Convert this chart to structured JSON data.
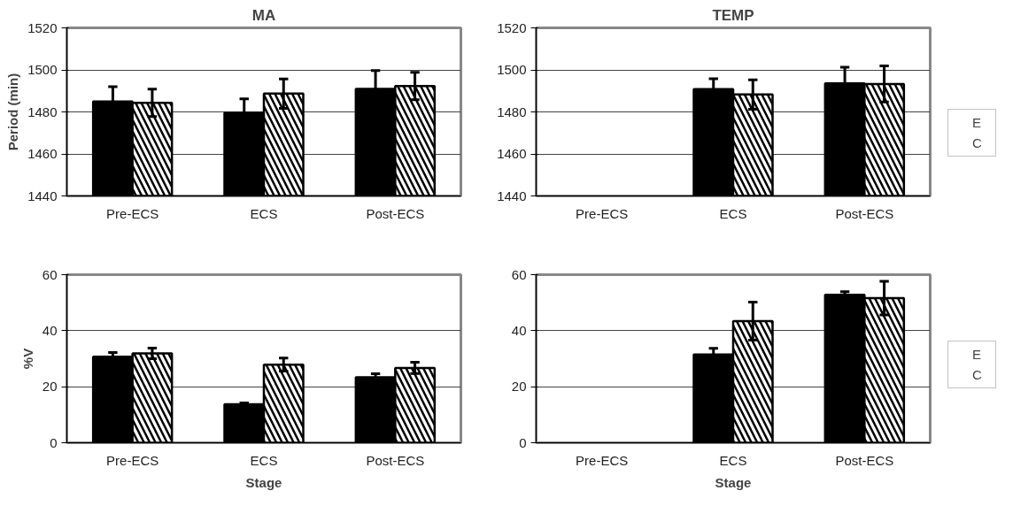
{
  "chart_data": [
    {
      "type": "bar",
      "title": "MA",
      "ylabel": "Period (min)",
      "categories": [
        "Pre-ECS",
        "ECS",
        "Post-ECS"
      ],
      "ylim": [
        1440,
        1520
      ],
      "yticks": [
        1440,
        1460,
        1480,
        1500,
        1520
      ],
      "grid": "y",
      "legend": false,
      "series": [
        {
          "color": "#000000",
          "values": [
            1485,
            1479.6,
            1491
          ],
          "errors": [
            7,
            6.6,
            8.7
          ]
        },
        {
          "color": "#ffffff",
          "values": [
            1484.3,
            1488.7,
            1492.3
          ],
          "errors": [
            6.5,
            7,
            6.5
          ]
        }
      ]
    },
    {
      "type": "bar",
      "title": "TEMP",
      "categories": [
        "Pre-ECS",
        "ECS",
        "Post-ECS"
      ],
      "ylim": [
        1440,
        1520
      ],
      "yticks": [
        1440,
        1460,
        1480,
        1500,
        1520
      ],
      "grid": "y",
      "legend": "right",
      "series": [
        {
          "name": "E",
          "color": "#000000",
          "values": [
            null,
            1490.8,
            1493.6
          ],
          "errors": [
            null,
            5,
            7.7
          ]
        },
        {
          "name": "C",
          "color": "#ffffff",
          "values": [
            null,
            1488.3,
            1493.3
          ],
          "errors": [
            null,
            7,
            8.6
          ]
        }
      ]
    },
    {
      "type": "bar",
      "ylabel": "%V",
      "xlabel": "Stage",
      "categories": [
        "Pre-ECS",
        "ECS",
        "Post-ECS"
      ],
      "ylim": [
        0,
        60
      ],
      "yticks": [
        0,
        20,
        40,
        60
      ],
      "grid": "y",
      "legend": false,
      "series": [
        {
          "color": "#000000",
          "values": [
            30.7,
            13.7,
            23.4
          ],
          "errors": [
            1.5,
            0.5,
            1.2
          ]
        },
        {
          "color": "#ffffff",
          "values": [
            31.9,
            27.9,
            26.7
          ],
          "errors": [
            1.9,
            2.3,
            2
          ]
        }
      ]
    },
    {
      "type": "bar",
      "xlabel": "Stage",
      "categories": [
        "Pre-ECS",
        "ECS",
        "Post-ECS"
      ],
      "ylim": [
        0,
        60
      ],
      "yticks": [
        0,
        20,
        40,
        60
      ],
      "grid": "y",
      "legend": "right",
      "series": [
        {
          "name": "E",
          "color": "#000000",
          "values": [
            null,
            31.5,
            52.8
          ],
          "errors": [
            null,
            2.2,
            1.1
          ]
        },
        {
          "name": "C",
          "color": "#ffffff",
          "values": [
            null,
            43.4,
            51.6
          ],
          "errors": [
            null,
            6.8,
            6
          ]
        }
      ]
    }
  ]
}
